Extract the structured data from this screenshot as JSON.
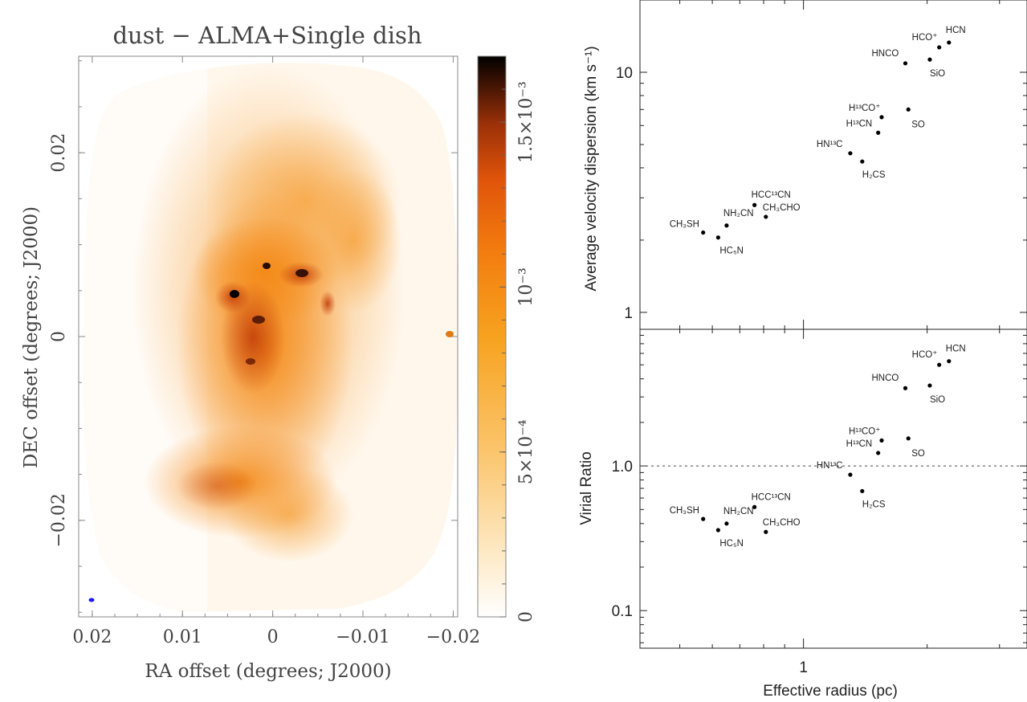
{
  "chart_data": [
    {
      "type": "heatmap",
      "title": "dust − ALMA+Single dish",
      "xlabel": "RA offset (degrees; J2000)",
      "ylabel": "DEC offset (degrees; J2000)",
      "xlim": [
        0.0215,
        -0.0205
      ],
      "ylim": [
        -0.0305,
        0.0305
      ],
      "x_ticks": [
        {
          "value": 0.02,
          "label": "0.02"
        },
        {
          "value": 0.01,
          "label": "0.01"
        },
        {
          "value": 0,
          "label": "0"
        },
        {
          "value": -0.01,
          "label": "−0.01"
        },
        {
          "value": -0.02,
          "label": "−0.02"
        }
      ],
      "y_ticks": [
        {
          "value": 0.02,
          "label": "0.02"
        },
        {
          "value": 0,
          "label": "0"
        },
        {
          "value": -0.02,
          "label": "−0.02"
        }
      ],
      "colorbar": {
        "range": [
          0,
          0.0017
        ],
        "ticks": [
          {
            "value": 0,
            "label": "0"
          },
          {
            "value": 0.0005,
            "label": "5×10⁻⁴"
          },
          {
            "value": 0.001,
            "label": "10⁻³"
          },
          {
            "value": 0.0015,
            "label": "1.5×10⁻³"
          }
        ],
        "colors": [
          "#ffffff",
          "#fde3b0",
          "#f9b04a",
          "#f58a10",
          "#e05a0a",
          "#8a2a08",
          "#000000"
        ]
      },
      "beam_color": "#1a1aff"
    },
    {
      "type": "scatter",
      "xlabel": "Effective radius (pc)",
      "ylabel": "Average velocity dispersion (km s⁻¹)",
      "x_scale": "log",
      "y_scale": "log",
      "xlim": [
        0.4,
        3.5
      ],
      "ylim": [
        0.85,
        20
      ],
      "x_ticks": [
        {
          "value": 1,
          "label": "1"
        }
      ],
      "y_ticks": [
        {
          "value": 1,
          "label": "1"
        },
        {
          "value": 10,
          "label": "10"
        }
      ],
      "points": [
        {
          "label": "CH₃SH",
          "x": 0.57,
          "y": 2.15
        },
        {
          "label": "HC₅N",
          "x": 0.62,
          "y": 2.05
        },
        {
          "label": "NH₂CN",
          "x": 0.65,
          "y": 2.3
        },
        {
          "label": "HCC¹³CN",
          "x": 0.76,
          "y": 2.8
        },
        {
          "label": "CH₃CHO",
          "x": 0.81,
          "y": 2.5
        },
        {
          "label": "HN¹³C",
          "x": 1.3,
          "y": 4.6
        },
        {
          "label": "H₂CS",
          "x": 1.39,
          "y": 4.25
        },
        {
          "label": "H¹³CN",
          "x": 1.52,
          "y": 5.6
        },
        {
          "label": "H¹³CO⁺",
          "x": 1.55,
          "y": 6.5
        },
        {
          "label": "SO",
          "x": 1.8,
          "y": 7.0
        },
        {
          "label": "HNCO",
          "x": 1.77,
          "y": 10.9
        },
        {
          "label": "SiO",
          "x": 2.03,
          "y": 11.3
        },
        {
          "label": "HCO⁺",
          "x": 2.14,
          "y": 12.7
        },
        {
          "label": "HCN",
          "x": 2.26,
          "y": 13.3
        }
      ]
    },
    {
      "type": "scatter",
      "xlabel": "Effective radius (pc)",
      "ylabel": "Virial Ratio",
      "x_scale": "log",
      "y_scale": "log",
      "xlim": [
        0.4,
        3.5
      ],
      "ylim": [
        0.055,
        8.8
      ],
      "x_ticks": [
        {
          "value": 1,
          "label": "1"
        }
      ],
      "y_ticks": [
        {
          "value": 0.1,
          "label": "0.1"
        },
        {
          "value": 1,
          "label": "1.0"
        }
      ],
      "reference_line": {
        "y": 1.0,
        "style": "dashed"
      },
      "points": [
        {
          "label": "CH₃SH",
          "x": 0.57,
          "y": 0.43
        },
        {
          "label": "HC₅N",
          "x": 0.62,
          "y": 0.36
        },
        {
          "label": "NH₂CN",
          "x": 0.65,
          "y": 0.4
        },
        {
          "label": "HCC¹³CN",
          "x": 0.76,
          "y": 0.52
        },
        {
          "label": "CH₃CHO",
          "x": 0.81,
          "y": 0.35
        },
        {
          "label": "HN¹³C",
          "x": 1.3,
          "y": 0.87
        },
        {
          "label": "H₂CS",
          "x": 1.39,
          "y": 0.67
        },
        {
          "label": "H¹³CN",
          "x": 1.52,
          "y": 1.23
        },
        {
          "label": "H¹³CO⁺",
          "x": 1.55,
          "y": 1.5
        },
        {
          "label": "SO",
          "x": 1.8,
          "y": 1.55
        },
        {
          "label": "HNCO",
          "x": 1.77,
          "y": 3.45
        },
        {
          "label": "SiO",
          "x": 2.03,
          "y": 3.6
        },
        {
          "label": "HCO⁺",
          "x": 2.14,
          "y": 5.0
        },
        {
          "label": "HCN",
          "x": 2.26,
          "y": 5.3
        }
      ]
    }
  ]
}
